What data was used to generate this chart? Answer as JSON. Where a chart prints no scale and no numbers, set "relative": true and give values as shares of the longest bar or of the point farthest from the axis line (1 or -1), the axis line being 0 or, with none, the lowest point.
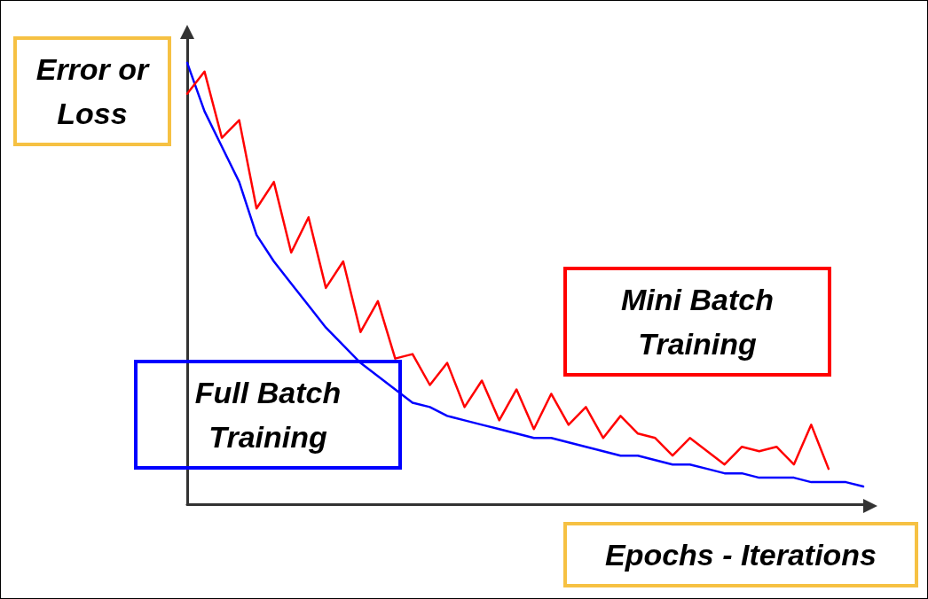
{
  "chart_data": {
    "type": "line",
    "relative": true,
    "xlabel": "Epochs - Iterations",
    "ylabel": "Error or Loss",
    "categories": [
      null,
      null,
      null,
      null,
      null,
      null,
      null,
      null,
      null,
      null,
      null,
      null,
      null,
      null,
      null,
      null,
      null,
      null,
      null,
      null,
      null,
      null,
      null,
      null,
      null,
      null,
      null,
      null,
      null,
      null,
      null,
      null,
      null,
      null,
      null,
      null,
      null,
      null,
      null,
      null
    ],
    "series": [
      {
        "name": "Full Batch Training",
        "color": "#0000ff",
        "values": [
          1,
          0.89,
          0.81,
          0.73,
          0.61,
          0.55,
          0.5,
          0.45,
          0.4,
          0.36,
          0.32,
          0.29,
          0.26,
          0.23,
          0.22,
          0.2,
          0.19,
          0.18,
          0.17,
          0.16,
          0.15,
          0.15,
          0.14,
          0.13,
          0.12,
          0.11,
          0.11,
          0.1,
          0.09,
          0.09,
          0.08,
          0.07,
          0.07,
          0.06,
          0.06,
          0.06,
          0.05,
          0.05,
          0.05,
          0.04
        ]
      },
      {
        "name": "Mini Batch Training",
        "color": "#ff0000",
        "values": [
          0.93,
          0.98,
          0.83,
          0.87,
          0.67,
          0.73,
          0.57,
          0.65,
          0.49,
          0.55,
          0.39,
          0.46,
          0.33,
          0.34,
          0.27,
          0.32,
          0.22,
          0.28,
          0.19,
          0.26,
          0.17,
          0.25,
          0.18,
          0.22,
          0.15,
          0.2,
          0.16,
          0.15,
          0.11,
          0.15,
          0.12,
          0.09,
          0.13,
          0.12,
          0.13,
          0.09,
          0.18,
          0.08,
          null,
          null
        ]
      }
    ],
    "legend": false,
    "grid": false,
    "marker": "none",
    "line_style": "solid"
  }
}
